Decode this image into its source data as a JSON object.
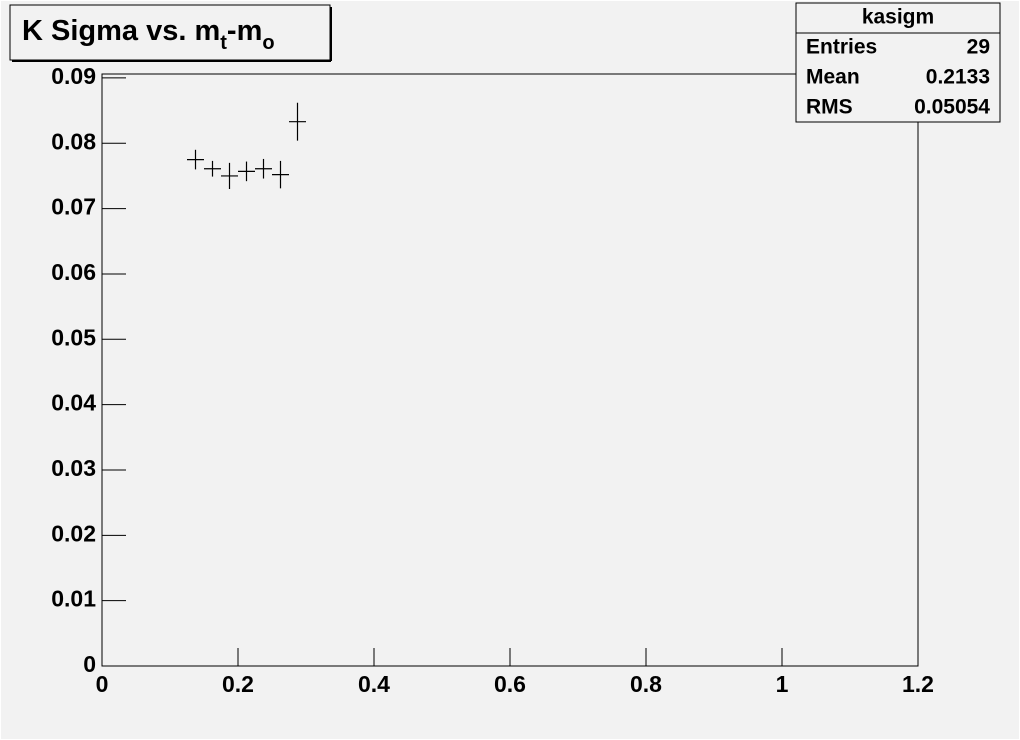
{
  "chart_data": {
    "type": "errorbar",
    "title": [
      {
        "text": "K Sigma vs. m",
        "subscript": false
      },
      {
        "text": "t",
        "subscript": true
      },
      {
        "text": "-m",
        "subscript": false
      },
      {
        "text": "o",
        "subscript": true
      }
    ],
    "x": [
      0.1375,
      0.1625,
      0.1875,
      0.2125,
      0.2375,
      0.2625,
      0.2875
    ],
    "x_errors": [
      0.0125,
      0.0125,
      0.0125,
      0.0125,
      0.0125,
      0.0125,
      0.0125
    ],
    "values": [
      0.0775,
      0.0761,
      0.075,
      0.0757,
      0.0761,
      0.0752,
      0.0833
    ],
    "errors": [
      0.0015,
      0.0012,
      0.002,
      0.0015,
      0.0015,
      0.0021,
      0.0029
    ],
    "color": "#000000",
    "xlim": [
      0,
      1.2
    ],
    "ylim": [
      0,
      0.0906
    ],
    "xticks": [
      0,
      0.2,
      0.4,
      0.6,
      0.8,
      1,
      1.2
    ],
    "yticks": [
      0,
      0.01,
      0.02,
      0.03,
      0.04,
      0.05,
      0.06,
      0.07,
      0.08,
      0.09
    ],
    "stats": {
      "name": "kasigm",
      "rows": [
        {
          "label": "Entries",
          "value": "29"
        },
        {
          "label": "Mean",
          "value": "0.2133"
        },
        {
          "label": "RMS",
          "value": "0.05054"
        }
      ]
    }
  }
}
